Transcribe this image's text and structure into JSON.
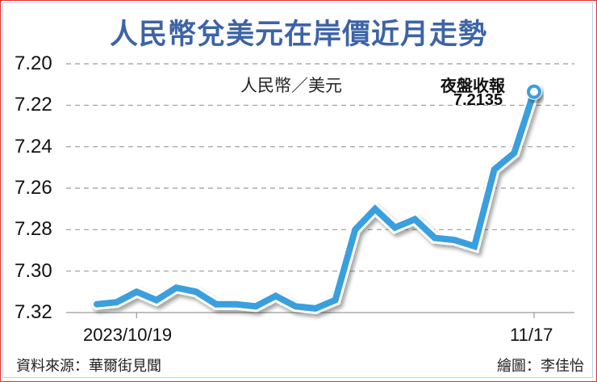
{
  "title": "人民幣兌美元在岸價近月走勢",
  "unit_label": "人民幣／美元",
  "annotation": {
    "label": "夜盤收報",
    "value": "7.2135"
  },
  "source": "資料來源：華爾街見聞",
  "credit": "繪圖：李佳怡",
  "colors": {
    "title": "#3d63a8",
    "line": "#3a9fde",
    "frame_outer": "#e0322e",
    "frame_inner": "#bcd3ea"
  },
  "y_ticks": [
    "7.20",
    "7.22",
    "7.24",
    "7.26",
    "7.28",
    "7.30",
    "7.32"
  ],
  "x_ticks": [
    "2023/10/19",
    "11/17"
  ],
  "chart_data": {
    "type": "line",
    "title": "人民幣兌美元在岸價近月走勢",
    "xlabel": "",
    "ylabel": "人民幣／美元",
    "ylim": [
      7.32,
      7.2
    ],
    "y_inverted": true,
    "grid": "horizontal dashed",
    "x_tick_labels": [
      "2023/10/19",
      "11/17"
    ],
    "x_tick_indices": [
      2,
      22
    ],
    "series": [
      {
        "name": "人民幣兌美元在岸價",
        "values": [
          7.316,
          7.315,
          7.31,
          7.314,
          7.308,
          7.31,
          7.316,
          7.316,
          7.317,
          7.312,
          7.317,
          7.318,
          7.314,
          7.28,
          7.27,
          7.279,
          7.275,
          7.284,
          7.285,
          7.288,
          7.251,
          7.243,
          7.2135
        ]
      }
    ],
    "annotations": [
      {
        "index": 22,
        "text": "夜盤收報 7.2135"
      }
    ]
  }
}
